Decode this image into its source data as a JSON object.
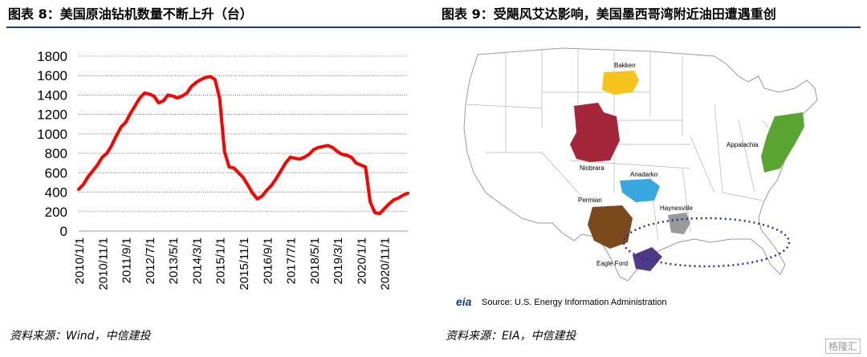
{
  "left_panel": {
    "title": "图表 8：美国原油钻机数量不断上升（台）",
    "source": "资料来源：Wind，中信建投"
  },
  "right_panel": {
    "title": "图表 9：受飓风艾达影响，美国墨西哥湾附近油田遭遇重创",
    "source": "资料来源：EIA，中信建投",
    "map_labels": {
      "bakken": "Bakken",
      "niobrara": "Niobrara",
      "anadarko": "Anadarko",
      "appalachia": "Appalachia",
      "haynesville": "Haynesville",
      "permian": "Permian",
      "eagle_ford": "Eagle Ford",
      "eia_logo": "eia",
      "eia_source": "Source: U.S. Energy Information Administration"
    },
    "colors": {
      "bakken": "#f5c31c",
      "niobrara": "#a3263a",
      "anadarko": "#39a7e0",
      "appalachia": "#5aa532",
      "haynesville": "#9a9a9a",
      "permian": "#7a4a1c",
      "eagle_ford": "#4f3a86",
      "ellipse": "#2a2aa8"
    }
  },
  "watermark": "格隆汇",
  "chart_data": {
    "type": "line",
    "title": "",
    "xlabel": "",
    "ylabel": "",
    "ylim": [
      0,
      1800
    ],
    "yticks": [
      0,
      200,
      400,
      600,
      800,
      1000,
      1200,
      1400,
      1600,
      1800
    ],
    "x_tick_labels": [
      "2010/1/1",
      "2010/11/1",
      "2011/9/1",
      "2012/7/1",
      "2013/5/1",
      "2014/3/1",
      "2015/1/1",
      "2015/11/1",
      "2016/9/1",
      "2017/7/1",
      "2018/5/1",
      "2019/3/1",
      "2020/1/1",
      "2020/11/1"
    ],
    "grid": true,
    "color": "#ff0000",
    "x": [
      "2010/1",
      "2010/3",
      "2010/5",
      "2010/7",
      "2010/9",
      "2010/11",
      "2011/1",
      "2011/3",
      "2011/5",
      "2011/7",
      "2011/9",
      "2011/11",
      "2012/1",
      "2012/3",
      "2012/5",
      "2012/7",
      "2012/9",
      "2012/11",
      "2013/1",
      "2013/3",
      "2013/5",
      "2013/7",
      "2013/9",
      "2013/11",
      "2014/1",
      "2014/3",
      "2014/5",
      "2014/7",
      "2014/9",
      "2014/11",
      "2015/1",
      "2015/3",
      "2015/5",
      "2015/7",
      "2015/9",
      "2015/11",
      "2016/1",
      "2016/3",
      "2016/5",
      "2016/7",
      "2016/9",
      "2016/11",
      "2017/1",
      "2017/3",
      "2017/5",
      "2017/7",
      "2017/9",
      "2017/11",
      "2018/1",
      "2018/3",
      "2018/5",
      "2018/7",
      "2018/9",
      "2018/11",
      "2019/1",
      "2019/3",
      "2019/5",
      "2019/7",
      "2019/9",
      "2019/11",
      "2020/1",
      "2020/3",
      "2020/5",
      "2020/7",
      "2020/9",
      "2020/11",
      "2021/1",
      "2021/3",
      "2021/5",
      "2021/7",
      "2021/9"
    ],
    "values": [
      430,
      480,
      560,
      620,
      680,
      760,
      800,
      880,
      980,
      1070,
      1120,
      1210,
      1290,
      1370,
      1420,
      1410,
      1390,
      1320,
      1340,
      1400,
      1390,
      1370,
      1390,
      1420,
      1490,
      1530,
      1560,
      1580,
      1590,
      1560,
      1360,
      820,
      660,
      650,
      600,
      550,
      470,
      390,
      330,
      360,
      420,
      470,
      540,
      620,
      700,
      760,
      750,
      740,
      760,
      790,
      840,
      860,
      870,
      880,
      860,
      820,
      790,
      780,
      760,
      700,
      680,
      660,
      300,
      190,
      180,
      230,
      280,
      320,
      340,
      370,
      390
    ]
  }
}
